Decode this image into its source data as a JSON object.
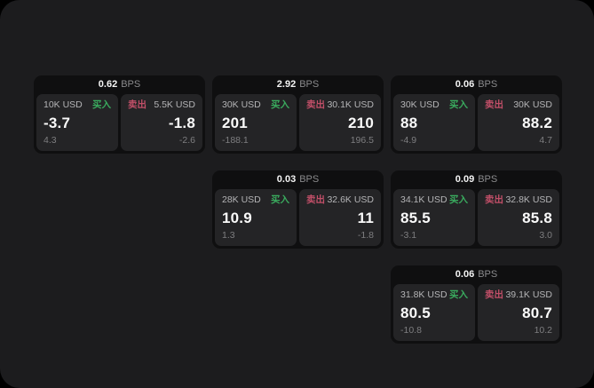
{
  "labels": {
    "bps": "BPS",
    "buy": "买入",
    "sell": "卖出"
  },
  "colors": {
    "page_background": "#1c1c1e",
    "card_background": "#0f0f10",
    "tile_background": "#242426",
    "buy_green": "#3aab5e",
    "sell_red": "#c14f68",
    "value_white": "#fafafa",
    "muted_gray": "#7e7e80"
  },
  "cards": [
    {
      "bps": "0.62",
      "buy": {
        "notional": "10K USD",
        "price": "-3.7",
        "change": "4.3"
      },
      "sell": {
        "notional": "5.5K USD",
        "price": "-1.8",
        "change": "-2.6"
      }
    },
    {
      "bps": "2.92",
      "buy": {
        "notional": "30K USD",
        "price": "201",
        "change": "-188.1"
      },
      "sell": {
        "notional": "30.1K USD",
        "price": "210",
        "change": "196.5"
      }
    },
    {
      "bps": "0.06",
      "buy": {
        "notional": "30K USD",
        "price": "88",
        "change": "-4.9"
      },
      "sell": {
        "notional": "30K USD",
        "price": "88.2",
        "change": "4.7"
      }
    },
    {
      "bps": "0.03",
      "buy": {
        "notional": "28K USD",
        "price": "10.9",
        "change": "1.3"
      },
      "sell": {
        "notional": "32.6K USD",
        "price": "11",
        "change": "-1.8"
      }
    },
    {
      "bps": "0.09",
      "buy": {
        "notional": "34.1K USD",
        "price": "85.5",
        "change": "-3.1"
      },
      "sell": {
        "notional": "32.8K USD",
        "price": "85.8",
        "change": "3.0"
      }
    },
    {
      "bps": "0.06",
      "buy": {
        "notional": "31.8K USD",
        "price": "80.5",
        "change": "-10.8"
      },
      "sell": {
        "notional": "39.1K USD",
        "price": "80.7",
        "change": "10.2"
      }
    }
  ]
}
